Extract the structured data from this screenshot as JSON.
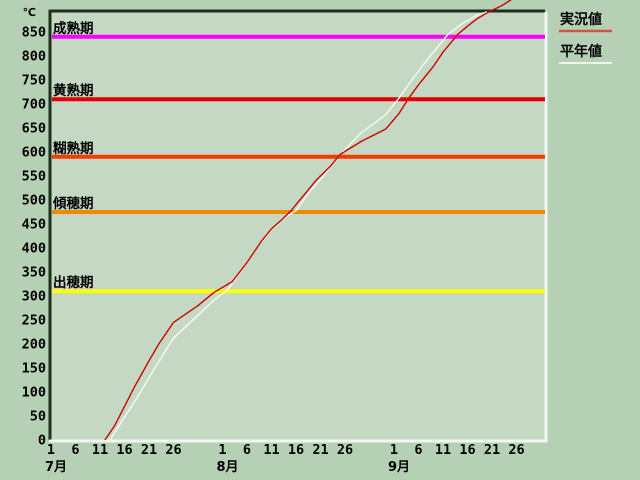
{
  "colors": {
    "bg_outer": "#b6d0b6",
    "bg_plot": "#c4d8c4",
    "border_dark": "#1c301c",
    "border_light": "#f2f9f2",
    "text": "#000000",
    "actual_curve": "#cc0000",
    "normal_curve": "#f6f8f0",
    "legend_actual_line": "#cc5544",
    "legend_normal_line": "#f0f5ee"
  },
  "legend": {
    "actual_label": "実況値",
    "normal_label": "平年値"
  },
  "chart_data": {
    "type": "line",
    "title": "",
    "ylabel": "℃",
    "ylim": [
      0,
      890
    ],
    "y_ticks": [
      850,
      800,
      750,
      700,
      650,
      600,
      550,
      500,
      450,
      400,
      350,
      300,
      250,
      200,
      150,
      100,
      50,
      0
    ],
    "x_months": [
      {
        "label": "7月",
        "month": 7,
        "day_ticks": [
          1,
          6,
          11,
          16,
          21,
          26
        ]
      },
      {
        "label": "8月",
        "month": 8,
        "day_ticks": [
          1,
          6,
          11,
          16,
          21,
          26
        ]
      },
      {
        "label": "9月",
        "month": 9,
        "day_ticks": [
          1,
          6,
          11,
          16,
          21,
          26
        ]
      }
    ],
    "grid": false,
    "legend_position": "top-right",
    "threshold_lines": [
      {
        "label": "成熟期",
        "value": 840,
        "color": "#ff00ff",
        "width": 4
      },
      {
        "label": "黄熟期",
        "value": 710,
        "color": "#e00000",
        "width": 4
      },
      {
        "label": "糊熟期",
        "value": 590,
        "color": "#f63b00",
        "width": 4
      },
      {
        "label": "傾穂期",
        "value": 475,
        "color": "#ef8a00",
        "width": 4
      },
      {
        "label": "出穂期",
        "value": 310,
        "color": "#ffff00",
        "width": 4
      }
    ],
    "series": [
      {
        "name": "実況値",
        "color": "#cc0000",
        "width": 1.4,
        "points": [
          [
            7,
            12,
            0
          ],
          [
            7,
            14,
            30
          ],
          [
            7,
            16,
            70
          ],
          [
            7,
            18,
            110
          ],
          [
            7,
            21,
            165
          ],
          [
            7,
            23,
            200
          ],
          [
            7,
            26,
            245
          ],
          [
            7,
            29,
            280
          ],
          [
            7,
            31,
            308
          ],
          [
            8,
            3,
            330
          ],
          [
            8,
            6,
            370
          ],
          [
            8,
            9,
            415
          ],
          [
            8,
            11,
            440
          ],
          [
            8,
            13,
            458
          ],
          [
            8,
            15,
            478
          ],
          [
            8,
            18,
            515
          ],
          [
            8,
            20,
            540
          ],
          [
            8,
            23,
            570
          ],
          [
            8,
            25,
            595
          ],
          [
            8,
            28,
            622
          ],
          [
            8,
            31,
            648
          ],
          [
            9,
            2,
            680
          ],
          [
            9,
            4,
            712
          ],
          [
            9,
            6,
            740
          ],
          [
            9,
            9,
            778
          ],
          [
            9,
            11,
            808
          ],
          [
            9,
            14,
            845
          ],
          [
            9,
            16,
            862
          ],
          [
            9,
            18,
            878
          ],
          [
            9,
            20,
            890
          ],
          [
            9,
            23,
            905
          ],
          [
            9,
            25,
            918
          ]
        ]
      },
      {
        "name": "平年値",
        "color": "#f6f8f0",
        "width": 1.5,
        "points": [
          [
            7,
            13,
            0
          ],
          [
            7,
            16,
            48
          ],
          [
            7,
            19,
            95
          ],
          [
            7,
            21,
            130
          ],
          [
            7,
            24,
            180
          ],
          [
            7,
            26,
            212
          ],
          [
            7,
            29,
            260
          ],
          [
            7,
            31,
            292
          ],
          [
            8,
            2,
            312
          ],
          [
            8,
            5,
            355
          ],
          [
            8,
            8,
            400
          ],
          [
            8,
            11,
            438
          ],
          [
            8,
            14,
            465
          ],
          [
            8,
            16,
            478
          ],
          [
            8,
            19,
            520
          ],
          [
            8,
            22,
            555
          ],
          [
            8,
            25,
            595
          ],
          [
            8,
            28,
            640
          ],
          [
            8,
            31,
            678
          ],
          [
            9,
            2,
            712
          ],
          [
            9,
            5,
            755
          ],
          [
            9,
            7,
            782
          ],
          [
            9,
            10,
            820
          ],
          [
            9,
            12,
            845
          ],
          [
            9,
            15,
            868
          ],
          [
            9,
            18,
            885
          ],
          [
            9,
            20,
            892
          ]
        ]
      }
    ]
  }
}
